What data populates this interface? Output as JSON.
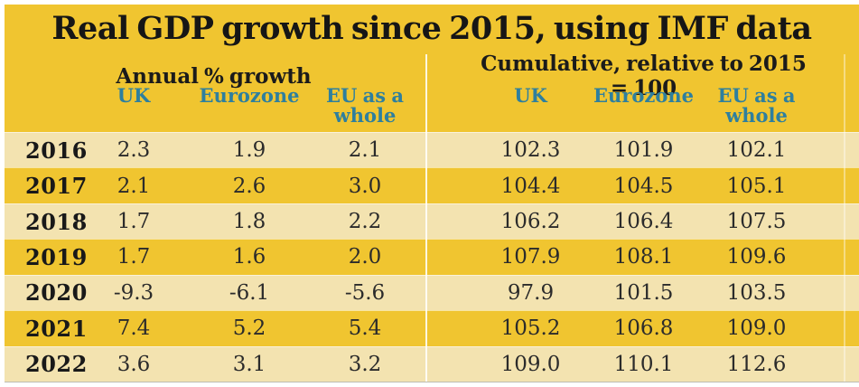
{
  "title": "Real GDP growth since 2015, using IMF data",
  "sections": {
    "left": "Annual % growth",
    "right": "Cumulative, relative to 2015 = 100"
  },
  "columns": {
    "c1": "UK",
    "c2": "Eurozone",
    "c3": "EU as a whole"
  },
  "colors": {
    "gold": "#F0C530",
    "cream": "#F3E3B0",
    "teal_header": "#2E7F9E",
    "text_dark": "#161616"
  },
  "table": {
    "rows": [
      {
        "year": "2016",
        "annual": [
          "2.3",
          "1.9",
          "2.1"
        ],
        "cumulative": [
          "102.3",
          "101.9",
          "102.1"
        ]
      },
      {
        "year": "2017",
        "annual": [
          "2.1",
          "2.6",
          "3.0"
        ],
        "cumulative": [
          "104.4",
          "104.5",
          "105.1"
        ]
      },
      {
        "year": "2018",
        "annual": [
          "1.7",
          "1.8",
          "2.2"
        ],
        "cumulative": [
          "106.2",
          "106.4",
          "107.5"
        ]
      },
      {
        "year": "2019",
        "annual": [
          "1.7",
          "1.6",
          "2.0"
        ],
        "cumulative": [
          "107.9",
          "108.1",
          "109.6"
        ]
      },
      {
        "year": "2020",
        "annual": [
          "-9.3",
          "-6.1",
          "-5.6"
        ],
        "cumulative": [
          "97.9",
          "101.5",
          "103.5"
        ]
      },
      {
        "year": "2021",
        "annual": [
          "7.4",
          "5.2",
          "5.4"
        ],
        "cumulative": [
          "105.2",
          "106.8",
          "109.0"
        ]
      },
      {
        "year": "2022",
        "annual": [
          "3.6",
          "3.1",
          "3.2"
        ],
        "cumulative": [
          "109.0",
          "110.1",
          "112.6"
        ]
      }
    ]
  },
  "chart_data": {
    "type": "table",
    "title": "Real GDP growth since 2015, using IMF data",
    "groups": [
      "Annual % growth",
      "Cumulative, relative to 2015 = 100"
    ],
    "columns": [
      "UK",
      "Eurozone",
      "EU as a whole"
    ],
    "years": [
      2016,
      2017,
      2018,
      2019,
      2020,
      2021,
      2022
    ],
    "annual_pct_growth": {
      "UK": [
        2.3,
        2.1,
        1.7,
        1.7,
        -9.3,
        7.4,
        3.6
      ],
      "Eurozone": [
        1.9,
        2.6,
        1.8,
        1.6,
        -6.1,
        5.2,
        3.1
      ],
      "EU_as_a_whole": [
        2.1,
        3.0,
        2.2,
        2.0,
        -5.6,
        5.4,
        3.2
      ]
    },
    "cumulative_rel_2015_100": {
      "UK": [
        102.3,
        104.4,
        106.2,
        107.9,
        97.9,
        105.2,
        109.0
      ],
      "Eurozone": [
        101.9,
        104.5,
        106.4,
        108.1,
        101.5,
        106.8,
        110.1
      ],
      "EU_as_a_whole": [
        102.1,
        105.1,
        107.5,
        109.6,
        103.5,
        109.0,
        112.6
      ]
    }
  }
}
